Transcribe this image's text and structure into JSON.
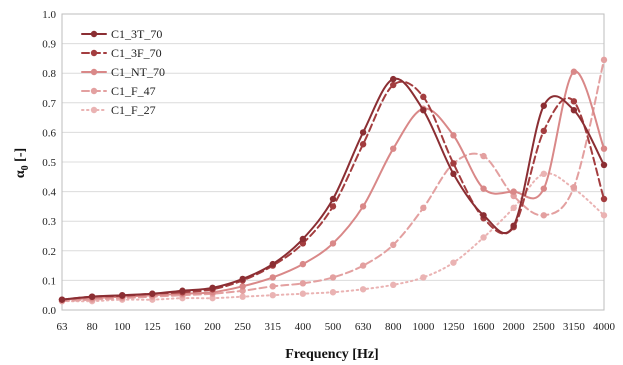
{
  "chart_data": {
    "type": "line",
    "xlabel": "Frequency [Hz]",
    "ylabel_main": "α",
    "ylabel_sub": "0",
    "ylabel_tail": " [-]",
    "ylim": [
      0,
      1
    ],
    "y_ticks": [
      "0.0",
      "0.1",
      "0.2",
      "0.3",
      "0.4",
      "0.5",
      "0.6",
      "0.7",
      "0.8",
      "0.9",
      "1.0"
    ],
    "x": [
      "63",
      "80",
      "100",
      "125",
      "160",
      "200",
      "250",
      "315",
      "400",
      "500",
      "630",
      "800",
      "1000",
      "1250",
      "1600",
      "2000",
      "2500",
      "3150",
      "4000"
    ],
    "grid": "horizontal",
    "legend_position": "top-left",
    "series": [
      {
        "name": "C1_3T_70",
        "color": "#8b2e33",
        "dash": "solid",
        "values": [
          0.035,
          0.045,
          0.05,
          0.055,
          0.065,
          0.075,
          0.105,
          0.155,
          0.24,
          0.375,
          0.6,
          0.78,
          0.675,
          0.46,
          0.32,
          0.285,
          0.69,
          0.675,
          0.49
        ]
      },
      {
        "name": "C1_3F_70",
        "color": "#a33d3f",
        "dash": "dashed",
        "values": [
          0.035,
          0.045,
          0.048,
          0.055,
          0.06,
          0.07,
          0.1,
          0.15,
          0.225,
          0.35,
          0.56,
          0.76,
          0.72,
          0.495,
          0.31,
          0.28,
          0.605,
          0.705,
          0.375
        ]
      },
      {
        "name": "C1_NT_70",
        "color": "#d98888",
        "dash": "solid",
        "values": [
          0.035,
          0.04,
          0.045,
          0.05,
          0.055,
          0.06,
          0.08,
          0.11,
          0.155,
          0.225,
          0.35,
          0.545,
          0.68,
          0.59,
          0.41,
          0.4,
          0.41,
          0.805,
          0.545
        ]
      },
      {
        "name": "C1_F_47",
        "color": "#e3a0a0",
        "dash": "dashed",
        "values": [
          0.03,
          0.035,
          0.04,
          0.045,
          0.05,
          0.055,
          0.065,
          0.08,
          0.09,
          0.11,
          0.15,
          0.22,
          0.345,
          0.495,
          0.52,
          0.385,
          0.32,
          0.415,
          0.845
        ]
      },
      {
        "name": "C1_F_27",
        "color": "#eab3b3",
        "dash": "dotted",
        "values": [
          0.03,
          0.03,
          0.035,
          0.035,
          0.04,
          0.04,
          0.045,
          0.05,
          0.055,
          0.06,
          0.07,
          0.085,
          0.11,
          0.16,
          0.245,
          0.345,
          0.46,
          0.41,
          0.32
        ]
      }
    ]
  }
}
